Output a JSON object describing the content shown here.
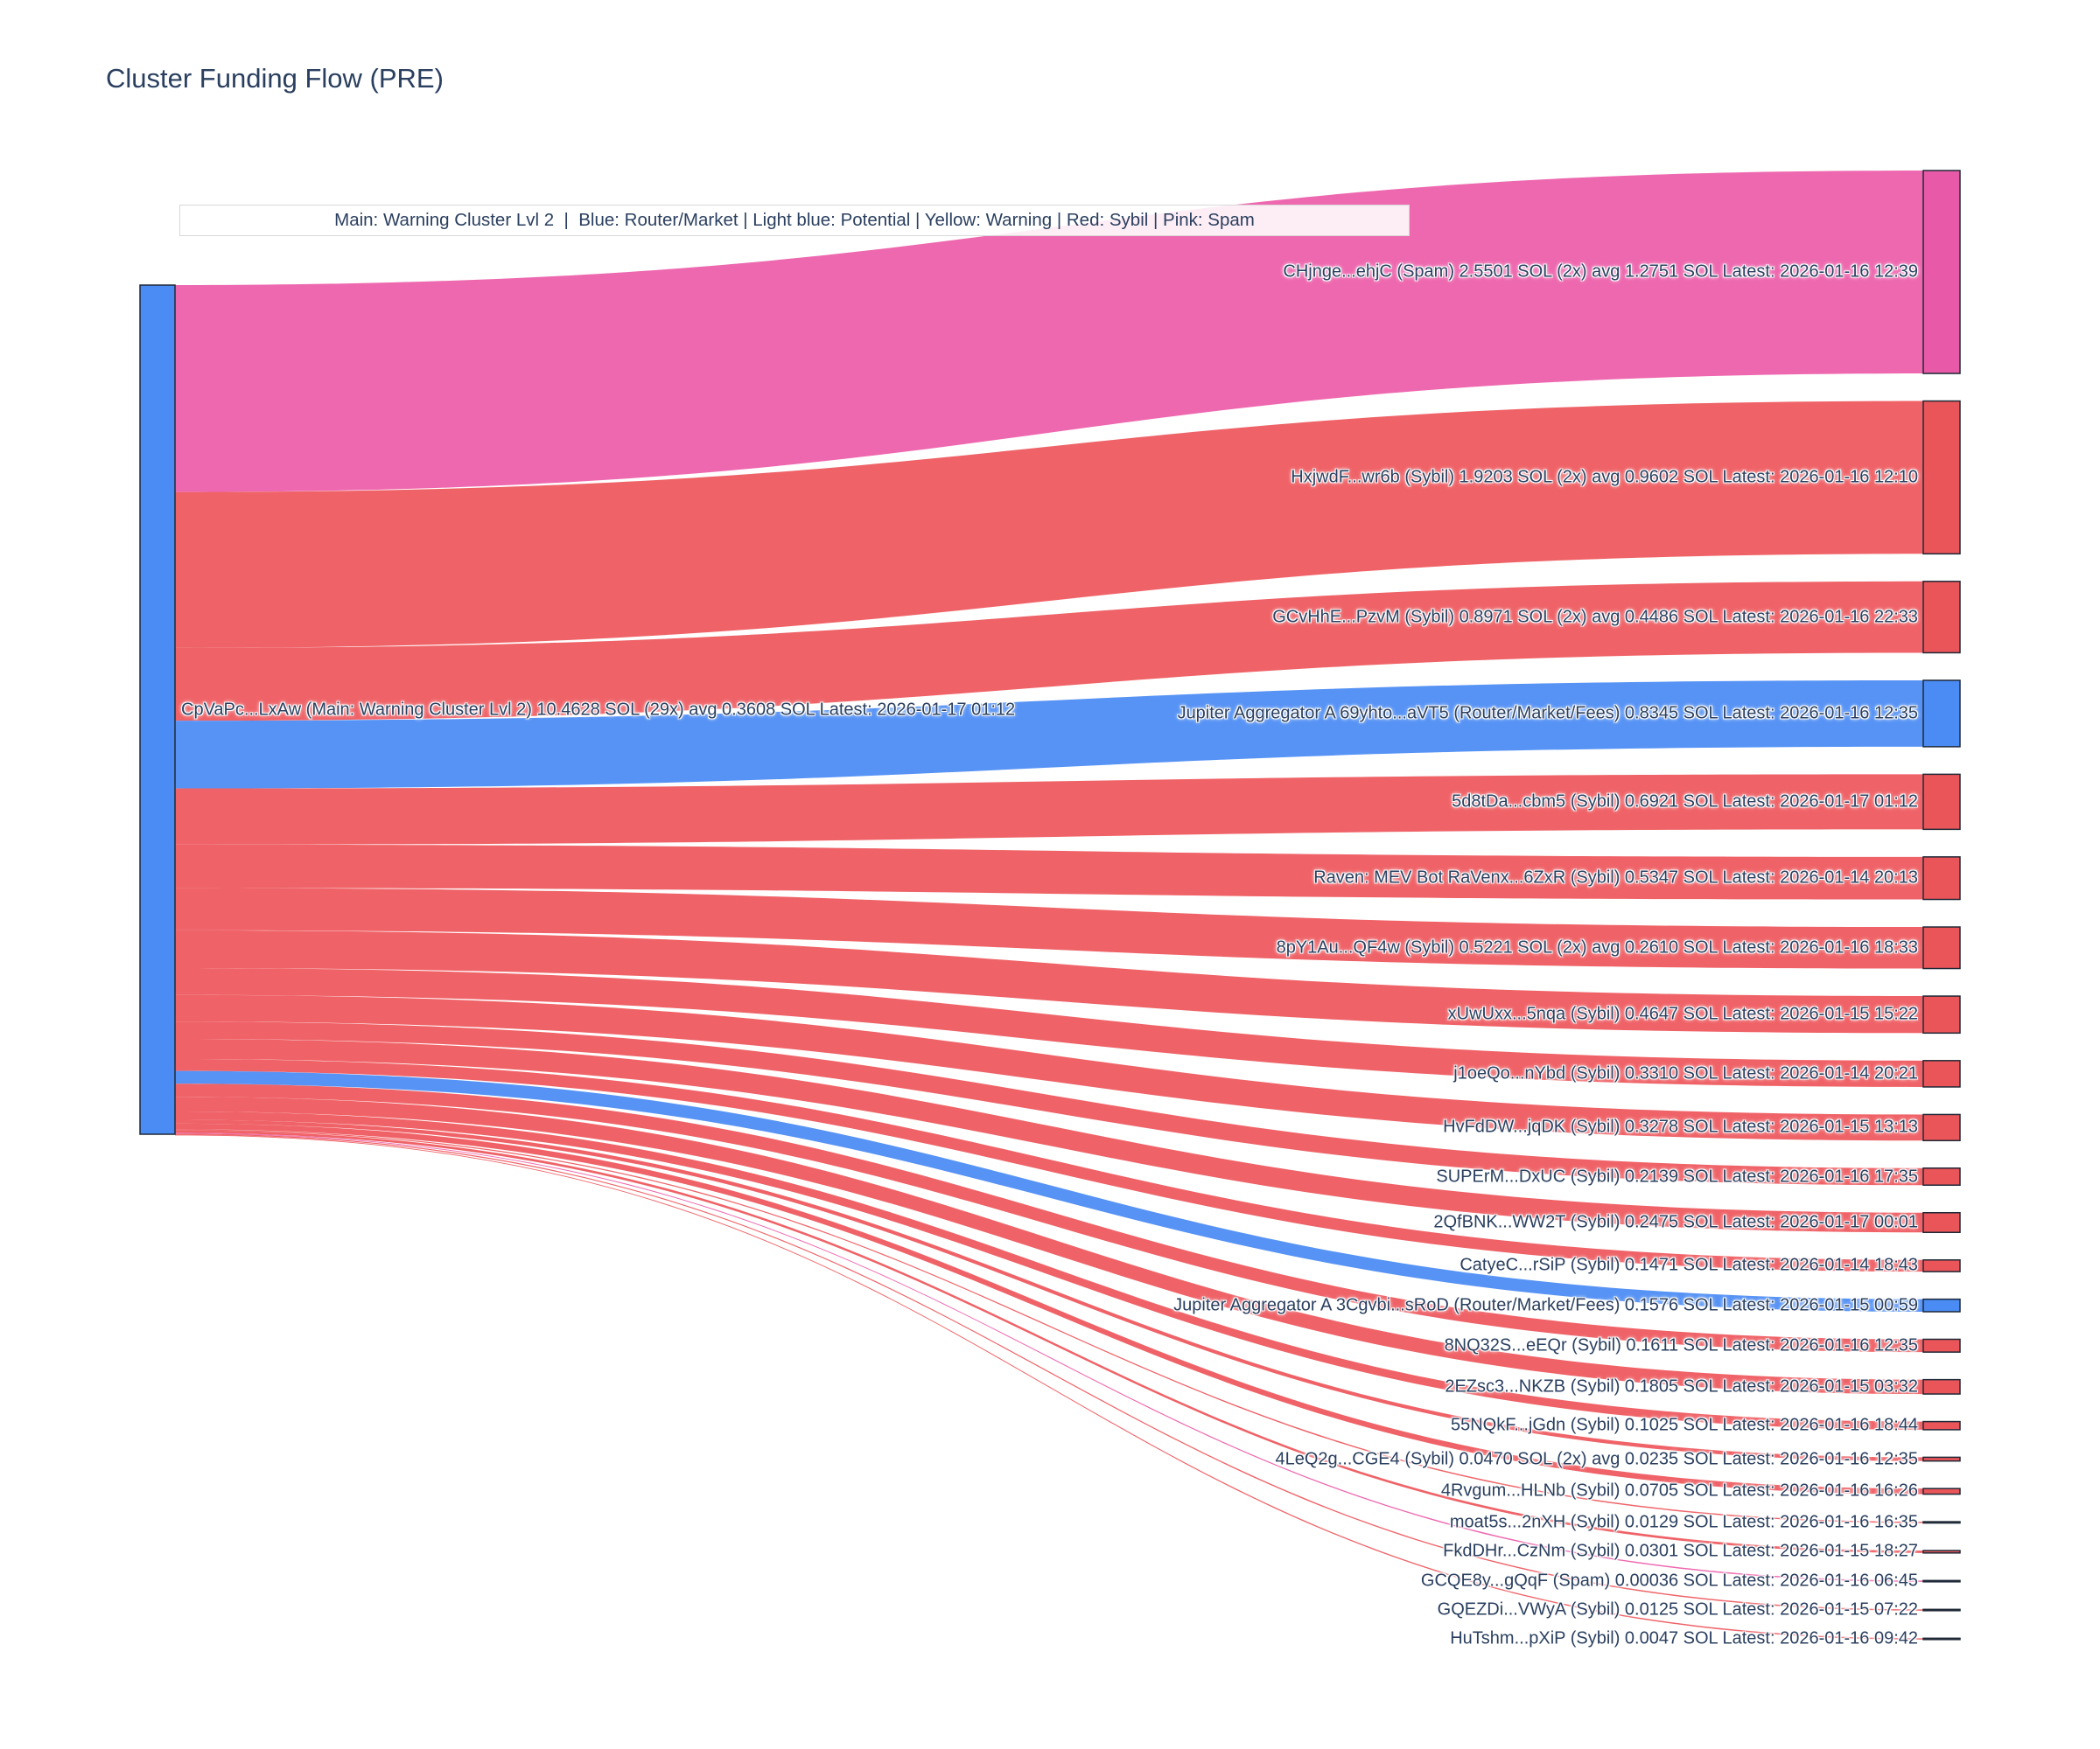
{
  "title": "Cluster Funding Flow (PRE)",
  "legend_note": "Main: Warning Cluster Lvl 2  |  Blue: Router/Market | Light blue: Potential | Yellow: Warning | Red: Sybil | Pink: Spam",
  "chart_data": {
    "type": "sankey",
    "title": "Cluster Funding Flow (PRE)",
    "unit": "SOL",
    "legend_note": "Main: Warning Cluster Lvl 2  |  Blue: Router/Market | Light blue: Potential | Yellow: Warning | Red: Sybil | Pink: Spam",
    "colors": {
      "main": "#4A8BF4",
      "router": "#4A8BF4",
      "sybil": "#EA555A",
      "spam": "#E85AA8",
      "flow_sybil": "#EE575C",
      "flow_spam": "#ED5CA9",
      "flow_router": "#4A8BF4",
      "node_border": "#1F2937",
      "text": "#2A3F5F"
    },
    "source_node": {
      "label": "CpVaPc...LxAw (Main: Warning Cluster Lvl 2) 10.4628 SOL (29x) avg 0.3608 SOL Latest: 2026-01-17 01:12",
      "name": "CpVaPc...LxAw",
      "category": "main",
      "total_sol": 10.4628,
      "tx_count": "29x",
      "avg_sol": 0.3608,
      "latest": "2026-01-17 01:12"
    },
    "links": [
      {
        "label": "CHjnge...ehjC (Spam) 2.5501 SOL (2x) avg 1.2751 SOL Latest: 2026-01-16 12:39",
        "value": 2.5501,
        "category": "spam"
      },
      {
        "label": "HxjwdF...wr6b (Sybil) 1.9203 SOL (2x) avg 0.9602 SOL Latest: 2026-01-16 12:10",
        "value": 1.9203,
        "category": "sybil"
      },
      {
        "label": "GCvHhE...PzvM (Sybil) 0.8971 SOL (2x) avg 0.4486 SOL Latest: 2026-01-16 22:33",
        "value": 0.8971,
        "category": "sybil"
      },
      {
        "label": "Jupiter Aggregator A 69yhto...aVT5 (Router/Market/Fees) 0.8345 SOL Latest: 2026-01-16 12:35",
        "value": 0.8345,
        "category": "router"
      },
      {
        "label": "5d8tDa...cbm5 (Sybil) 0.6921 SOL Latest: 2026-01-17 01:12",
        "value": 0.6921,
        "category": "sybil"
      },
      {
        "label": "Raven: MEV Bot RaVenx...6ZxR (Sybil) 0.5347 SOL Latest: 2026-01-14 20:13",
        "value": 0.5347,
        "category": "sybil"
      },
      {
        "label": "8pY1Au...QF4w (Sybil) 0.5221 SOL (2x) avg 0.2610 SOL Latest: 2026-01-16 18:33",
        "value": 0.5221,
        "category": "sybil"
      },
      {
        "label": "xUwUxx...5nqa (Sybil) 0.4647 SOL Latest: 2026-01-15 15:22",
        "value": 0.4647,
        "category": "sybil"
      },
      {
        "label": "j1oeQo...nYbd (Sybil) 0.3310 SOL Latest: 2026-01-14 20:21",
        "value": 0.331,
        "category": "sybil"
      },
      {
        "label": "HvFdDW...jqDK (Sybil) 0.3278 SOL Latest: 2026-01-15 13:13",
        "value": 0.3278,
        "category": "sybil"
      },
      {
        "label": "SUPErM...DxUC (Sybil) 0.2139 SOL Latest: 2026-01-16 17:35",
        "value": 0.2139,
        "category": "sybil"
      },
      {
        "label": "2QfBNK...WW2T (Sybil) 0.2475 SOL Latest: 2026-01-17 00:01",
        "value": 0.2475,
        "category": "sybil"
      },
      {
        "label": "CatyeC...rSiP (Sybil) 0.1471 SOL Latest: 2026-01-14 18:43",
        "value": 0.1471,
        "category": "sybil"
      },
      {
        "label": "Jupiter Aggregator A 3Cgvbi...sRoD (Router/Market/Fees) 0.1576 SOL Latest: 2026-01-15 00:59",
        "value": 0.1576,
        "category": "router"
      },
      {
        "label": "8NQ32S...eEQr (Sybil) 0.1611 SOL Latest: 2026-01-16 12:35",
        "value": 0.1611,
        "category": "sybil"
      },
      {
        "label": "2EZsc3...NKZB (Sybil) 0.1805 SOL Latest: 2026-01-15 03:32",
        "value": 0.1805,
        "category": "sybil"
      },
      {
        "label": "55NQkF...jGdn (Sybil) 0.1025 SOL Latest: 2026-01-16 18:44",
        "value": 0.1025,
        "category": "sybil"
      },
      {
        "label": "4LeQ2g...CGE4 (Sybil) 0.0470 SOL (2x) avg 0.0235 SOL Latest: 2026-01-16 12:35",
        "value": 0.047,
        "category": "sybil"
      },
      {
        "label": "4Rvgum...HLNb (Sybil) 0.0705 SOL Latest: 2026-01-16 16:26",
        "value": 0.0705,
        "category": "sybil"
      },
      {
        "label": "moat5s...2nXH (Sybil) 0.0129 SOL Latest: 2026-01-16 16:35",
        "value": 0.0129,
        "category": "sybil"
      },
      {
        "label": "FkdDHr...CzNm (Sybil) 0.0301 SOL Latest: 2026-01-15 18:27",
        "value": 0.0301,
        "category": "sybil"
      },
      {
        "label": "GCQE8y...gQqF (Spam) 0.00036 SOL Latest: 2026-01-16 06:45",
        "value": 0.00036,
        "category": "spam"
      },
      {
        "label": "GQEZDi...VWyA (Sybil) 0.0125 SOL Latest: 2026-01-15 07:22",
        "value": 0.0125,
        "category": "sybil"
      },
      {
        "label": "HuTshm...pXiP (Sybil) 0.0047 SOL Latest: 2026-01-16 09:42",
        "value": 0.0047,
        "category": "sybil"
      }
    ],
    "layout_hints": {
      "orientation": "horizontal",
      "source_on_left": true,
      "legend_position": "top-left-annotation",
      "labels_right_aligned_to_nodes": true
    }
  }
}
